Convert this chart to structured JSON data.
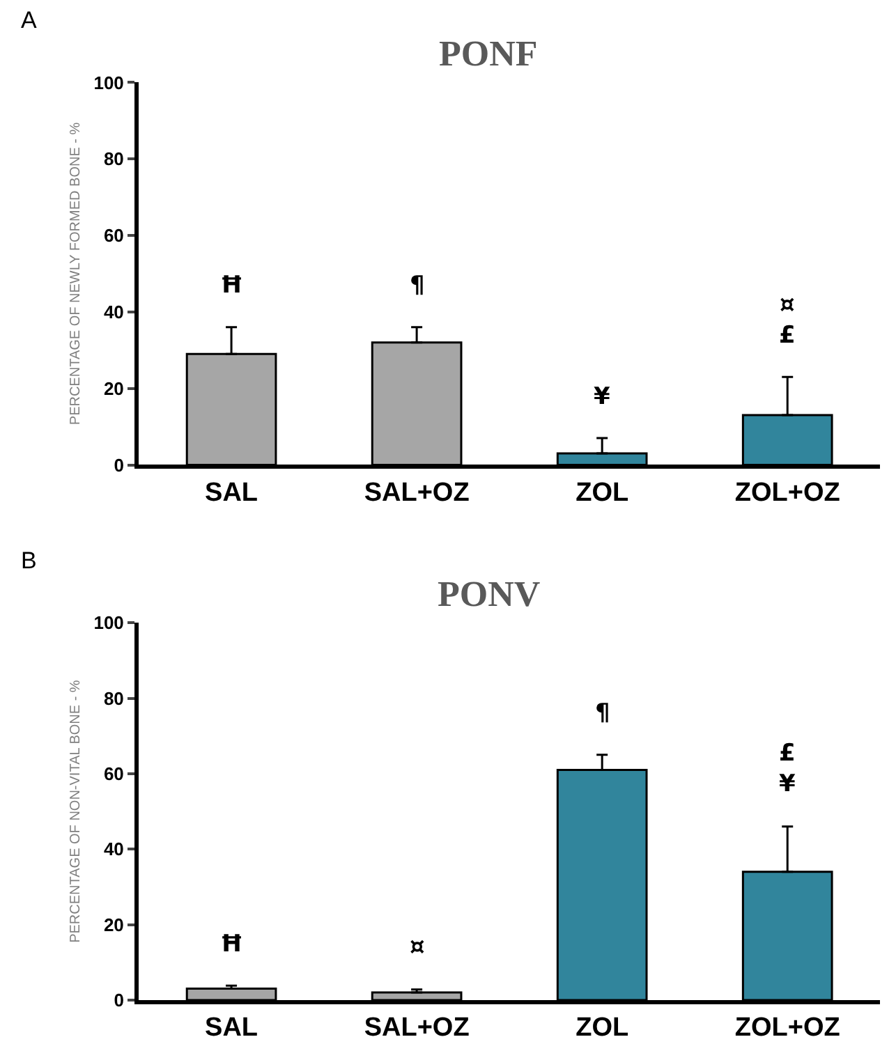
{
  "chart_data": [
    {
      "type": "bar",
      "title": "PONF",
      "ylabel": "PERCENTAGE OF NEWLY FORMED BONE - %",
      "categories": [
        "SAL",
        "SAL+OZ",
        "ZOL",
        "ZOL+OZ"
      ],
      "values": [
        29,
        32,
        3,
        13
      ],
      "colors": [
        "#a6a6a6",
        "#a6a6a6",
        "#31859c",
        "#31859c"
      ],
      "errors": [
        [
          29,
          36
        ],
        [
          32,
          36
        ],
        [
          3,
          7
        ],
        [
          13,
          23
        ]
      ],
      "ylim": [
        0,
        100
      ],
      "yticks": [
        0,
        20,
        40,
        60,
        80,
        100
      ],
      "value_labels": [
        "Ħ",
        "¶",
        "¥",
        "¤\n£"
      ],
      "annotations": [
        "A"
      ]
    },
    {
      "type": "bar",
      "title": "PONV",
      "ylabel": "PERCENTAGE OF NON-VITAL BONE - %",
      "categories": [
        "SAL",
        "SAL+OZ",
        "ZOL",
        "ZOL+OZ"
      ],
      "values": [
        3,
        2,
        61,
        34
      ],
      "colors": [
        "#a6a6a6",
        "#a6a6a6",
        "#31859c",
        "#31859c"
      ],
      "errors": [
        [
          3,
          3.8
        ],
        [
          2,
          2.8
        ],
        [
          61,
          65
        ],
        [
          34,
          46
        ]
      ],
      "ylim": [
        0,
        100
      ],
      "yticks": [
        0,
        20,
        40,
        60,
        80,
        100
      ],
      "value_labels": [
        "Ħ",
        "¤",
        "¶",
        "£\n¥"
      ],
      "annotations": [
        "B"
      ]
    }
  ]
}
